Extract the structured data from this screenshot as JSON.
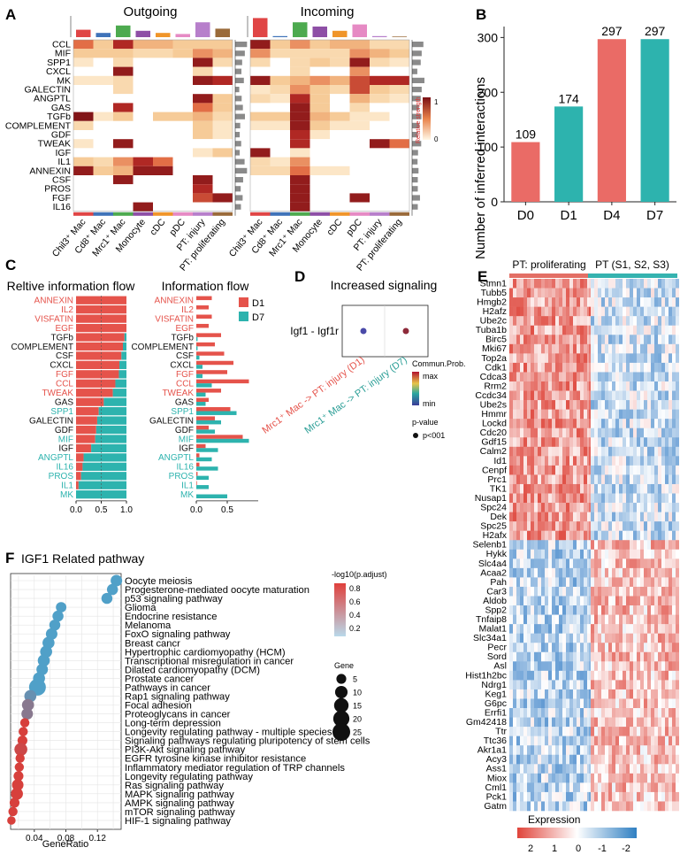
{
  "panels": {
    "A": {
      "letter": "A",
      "outgoing_title": "Outgoing",
      "incoming_title": "Incoming",
      "pathways": [
        "CCL",
        "MIF",
        "SPP1",
        "CXCL",
        "MK",
        "GALECTIN",
        "ANGPTL",
        "GAS",
        "TGFb",
        "COMPLEMENT",
        "GDF",
        "TWEAK",
        "IGF",
        "IL1",
        "ANNEXIN",
        "CSF",
        "PROS",
        "FGF",
        "IL16"
      ],
      "cell_types": [
        "Chil3⁺ Mac",
        "Cd8⁺ Mac",
        "Mrc1⁺ Mac",
        "Monocyte",
        "cDC",
        "pDC",
        "PT: injury",
        "PT: proliferating"
      ],
      "cell_colors": [
        "#e04545",
        "#3f73b9",
        "#4daa4f",
        "#8e4fa6",
        "#f0952a",
        "#e68ac4",
        "#b77fcb",
        "#9a6a3a"
      ],
      "legend_title": "Relative strength",
      "legend_max": "1",
      "legend_min": "0",
      "outgoing_top": [
        0.35,
        0.2,
        0.55,
        0.3,
        0.2,
        0.15,
        0.7,
        0.4
      ],
      "incoming_top": [
        0.9,
        0.05,
        0.7,
        0.5,
        0.3,
        0.6,
        0.05,
        0.03
      ],
      "outgoing_matrix": [
        [
          0.6,
          0.3,
          0.8,
          0.4,
          0.4,
          0.3,
          0.3,
          0.3
        ],
        [
          0.3,
          0.3,
          0.3,
          0.2,
          0.2,
          0.3,
          0.5,
          0.4
        ],
        [
          0.1,
          0,
          0.2,
          0,
          0,
          0,
          0.9,
          0.2
        ],
        [
          0,
          0,
          0.9,
          0,
          0,
          0,
          0.2,
          0
        ],
        [
          0.1,
          0.1,
          0.2,
          0,
          0,
          0,
          0.9,
          0.8
        ],
        [
          0,
          0,
          0.2,
          0,
          0,
          0,
          0,
          0
        ],
        [
          0,
          0,
          0,
          0,
          0,
          0,
          0.9,
          0.3
        ],
        [
          0,
          0,
          0.8,
          0,
          0,
          0,
          0.6,
          0.3
        ],
        [
          0.95,
          0.1,
          0.3,
          0,
          0.3,
          0.3,
          0.4,
          0.2
        ],
        [
          0.2,
          0,
          0,
          0,
          0,
          0,
          0.3,
          0.1
        ],
        [
          0,
          0,
          0,
          0,
          0,
          0,
          0.3,
          0.1
        ],
        [
          0.1,
          0,
          0.9,
          0,
          0,
          0,
          0,
          0
        ],
        [
          0,
          0,
          0,
          0,
          0,
          0,
          0.1,
          0.3
        ],
        [
          0.3,
          0.2,
          0.5,
          0.8,
          0.6,
          0,
          0,
          0
        ],
        [
          0.9,
          0.3,
          0.4,
          0.9,
          0.9,
          0,
          0,
          0
        ],
        [
          0,
          0,
          0.9,
          0,
          0,
          0,
          0.9,
          0
        ],
        [
          0,
          0,
          0,
          0,
          0,
          0,
          0.8,
          0
        ],
        [
          0,
          0,
          0,
          0,
          0,
          0,
          0.7,
          0.9
        ],
        [
          0,
          0,
          0,
          0.9,
          0,
          0,
          0,
          0
        ]
      ],
      "incoming_matrix": [
        [
          0.9,
          0.3,
          0.5,
          0.3,
          0.4,
          0.4,
          0.2,
          0.2
        ],
        [
          0.5,
          0.2,
          0.2,
          0.2,
          0.2,
          0.5,
          0.4,
          0.3
        ],
        [
          0.2,
          0,
          0.2,
          0.3,
          0.2,
          0.9,
          0.2,
          0.1
        ],
        [
          0,
          0,
          0.2,
          0,
          0,
          0.5,
          0,
          0
        ],
        [
          0.9,
          0.3,
          0.4,
          0.5,
          0.4,
          0.7,
          0.8,
          0.8
        ],
        [
          0.1,
          0.2,
          0.5,
          0.3,
          0.2,
          0.7,
          0.3,
          0.2
        ],
        [
          0.2,
          0.1,
          0.8,
          0.3,
          0,
          0.4,
          0.2,
          0.1
        ],
        [
          0,
          0,
          0.9,
          0.3,
          0,
          0.2,
          0,
          0
        ],
        [
          0.3,
          0.3,
          0.9,
          0.4,
          0.3,
          0.1,
          0.1,
          0
        ],
        [
          0.1,
          0.1,
          0.9,
          0.3,
          0.1,
          0.1,
          0,
          0
        ],
        [
          0,
          0,
          0.8,
          0.1,
          0,
          0,
          0,
          0
        ],
        [
          0,
          0,
          0.8,
          0,
          0,
          0,
          0.9,
          0.6
        ],
        [
          0.9,
          0,
          0.1,
          0,
          0,
          0,
          0,
          0
        ],
        [
          0.2,
          0.1,
          0.5,
          0,
          0,
          0,
          0,
          0
        ],
        [
          0.2,
          0.2,
          0.6,
          0.1,
          0.1,
          0,
          0,
          0
        ],
        [
          0,
          0,
          0.9,
          0,
          0,
          0,
          0,
          0
        ],
        [
          0,
          0,
          0.9,
          0,
          0,
          0,
          0,
          0
        ],
        [
          0,
          0,
          0.9,
          0,
          0,
          0.9,
          0,
          0
        ],
        [
          0,
          0,
          0.9,
          0,
          0,
          0,
          0,
          0
        ]
      ]
    },
    "B": {
      "letter": "B",
      "ylabel": "Number of inferred interactions"
    },
    "C": {
      "letter": "C",
      "left_title": "Reltive information flow",
      "right_title": "Information flow",
      "legend": [
        "D1",
        "D7"
      ],
      "colors": [
        "#e5534b",
        "#2db3ae"
      ],
      "pathways": [
        "ANNEXIN",
        "IL2",
        "VISFATIN",
        "EGF",
        "TGFb",
        "COMPLEMENT",
        "CSF",
        "CXCL",
        "FGF",
        "CCL",
        "TWEAK",
        "GAS",
        "SPP1",
        "GALECTIN",
        "GDF",
        "MIF",
        "IGF",
        "ANGPTL",
        "IL16",
        "PROS",
        "IL1",
        "MK"
      ],
      "label_colors": [
        "#e5534b",
        "#e5534b",
        "#e5534b",
        "#e5534b",
        "#111111",
        "#111111",
        "#111111",
        "#111111",
        "#e5534b",
        "#e5534b",
        "#e5534b",
        "#111111",
        "#2db3ae",
        "#111111",
        "#111111",
        "#2db3ae",
        "#111111",
        "#2db3ae",
        "#2db3ae",
        "#2db3ae",
        "#2db3ae",
        "#2db3ae"
      ],
      "relative_d1": [
        1,
        1,
        1,
        1,
        0.96,
        0.93,
        0.9,
        0.86,
        0.85,
        0.78,
        0.73,
        0.55,
        0.45,
        0.42,
        0.4,
        0.38,
        0.3,
        0.15,
        0.13,
        0.1,
        0.05,
        0
      ],
      "flow_d1": [
        0.25,
        0.2,
        0.25,
        0.2,
        0.4,
        0.3,
        0.45,
        0.6,
        0.5,
        0.85,
        0.4,
        0.2,
        0.55,
        0.3,
        0.2,
        0.75,
        0.15,
        0.05,
        0.05,
        0.02,
        0.01,
        0
      ],
      "flow_d7": [
        0,
        0,
        0,
        0,
        0.02,
        0.02,
        0.05,
        0.1,
        0.1,
        0.25,
        0.15,
        0.15,
        0.65,
        0.4,
        0.3,
        0.85,
        0.35,
        0.25,
        0.35,
        0.2,
        0.2,
        0.5
      ],
      "relative_ticks": [
        "0.0",
        "0.5",
        "1.0"
      ],
      "flow_ticks": [
        "0.0",
        "0.5"
      ]
    },
    "D": {
      "letter": "D",
      "title": "Increased signaling",
      "pair_label": "Igf1 - Igf1r",
      "x_labels": [
        "Mrc1⁺ Mac -> PT: injury (D1)",
        "Mrc1⁺ Mac -> PT: injury (D7)"
      ],
      "x_label_colors": [
        "#e5534b",
        "#2a9e96"
      ],
      "dot_colors": [
        "#4a4aa8",
        "#8e2a3a"
      ],
      "legend_prob_title": "Commun.Prob.",
      "legend_max": "max",
      "legend_min": "min",
      "legend_p_title": "p-value",
      "legend_p_value": "p<001"
    },
    "E": {
      "letter": "E",
      "group_labels": [
        "PT: proliferating",
        "PT (S1, S2, S3)"
      ],
      "group_colors": [
        "#e36f65",
        "#35b3b0"
      ],
      "genes": [
        "Stmn1",
        "Tubb5",
        "Hmgb2",
        "H2afz",
        "Ube2c",
        "Tuba1b",
        "Birc5",
        "Mki67",
        "Top2a",
        "Cdk1",
        "Cdca3",
        "Rrm2",
        "Ccdc34",
        "Ube2s",
        "Hmmr",
        "Lockd",
        "Cdc20",
        "Gdf15",
        "Calm2",
        "Id1",
        "Cenpf",
        "Prc1",
        "TK1",
        "Nusap1",
        "Spc24",
        "Dek",
        "Spc25",
        "H2afx",
        "Selenb1",
        "Hykk",
        "Slc4a4",
        "Acaa2",
        "Pah",
        "Car3",
        "Aldob",
        "Spp2",
        "Tnfaip8",
        "Malat1",
        "Slc34a1",
        "Pecr",
        "Sord",
        "Asl",
        "Hist1h2bc",
        "Ndrg1",
        "Keg1",
        "G6pc",
        "Errfi1",
        "Gm42418",
        "Ttr",
        "Ttc36",
        "Akr1a1",
        "Acy3",
        "Ass1",
        "Miox",
        "Cml1",
        "Pck1",
        "Gatm"
      ],
      "n_up_genes": 28,
      "expression_title": "Expression",
      "expression_ticks": [
        "2",
        "1",
        "0",
        "-1",
        "-2"
      ]
    },
    "F": {
      "letter": "F",
      "title": "IGF1 Related pathway",
      "xlabel": "GeneRatio",
      "x_ticks": [
        "0.04",
        "0.08",
        "0.12"
      ],
      "color_legend_title": "-log10(p.adjust)",
      "color_legend_ticks": [
        "0.8",
        "0.6",
        "0.4",
        "0.2"
      ],
      "size_legend_title": "Gene",
      "size_legend_values": [
        "5",
        "10",
        "15",
        "20",
        "25"
      ]
    }
  },
  "chart_data": [
    {
      "type": "bar",
      "title": "",
      "xlabel": "",
      "ylabel": "Number of inferred interactions",
      "categories": [
        "D0",
        "D1",
        "D4",
        "D7"
      ],
      "values": [
        109,
        174,
        297,
        297
      ],
      "bar_colors": [
        "#ea6b66",
        "#2db3ae",
        "#ea6b66",
        "#2db3ae"
      ],
      "ylim": [
        0,
        320
      ],
      "yticks": [
        0,
        100,
        200,
        300
      ]
    },
    {
      "type": "scatter",
      "title": "IGF1 Related pathway",
      "xlabel": "GeneRatio",
      "xlim": [
        0.01,
        0.15
      ],
      "terms": [
        "Oocyte meiosis",
        "Progesterone-mediated oocyte maturation",
        "p53 signaling pathway",
        "Glioma",
        "Endocrine resistance",
        "Melanoma",
        "FoxO signaling pathway",
        "Breast cancr",
        "Hypertrophic cardiomyopathy (HCM)",
        "Transcriptional misregulation in cancer",
        "Dilated cardiomyopathy (DCM)",
        "Prostate cancer",
        "Pathways in cancer",
        "Rap1 signaling pathway",
        "Focal adhesion",
        "Proteoglycans in cancer",
        "Long-term depression",
        "Longevity regulating pathway - multiple species",
        "Signaling pathways regulating pluripotency of stem cells",
        "PI3K-Akt signaling pathway",
        "EGFR tyrosine kinase inhibitor resistance",
        "Inflammatory mediator regulation of TRP channels",
        "Longevity regulating pathway",
        "Ras signaling pathway",
        "MAPK signaling pathway",
        "AMPK signaling pathway",
        "mTOR signaling pathway",
        "HIF-1 signaling pathway"
      ],
      "gene_ratio": [
        0.144,
        0.139,
        0.132,
        0.074,
        0.07,
        0.066,
        0.062,
        0.058,
        0.055,
        0.052,
        0.05,
        0.046,
        0.044,
        0.035,
        0.032,
        0.031,
        0.028,
        0.026,
        0.025,
        0.023,
        0.022,
        0.021,
        0.02,
        0.019,
        0.018,
        0.015,
        0.013,
        0.011
      ],
      "gene_count": [
        8,
        7,
        7,
        6,
        7,
        7,
        8,
        9,
        9,
        9,
        8,
        9,
        22,
        9,
        9,
        8,
        4,
        4,
        5,
        11,
        4,
        4,
        5,
        8,
        9,
        5,
        4,
        3
      ],
      "neg_log10_padj": [
        0.2,
        0.2,
        0.2,
        0.2,
        0.2,
        0.2,
        0.2,
        0.2,
        0.2,
        0.2,
        0.2,
        0.2,
        0.2,
        0.3,
        0.45,
        0.45,
        0.8,
        0.8,
        0.8,
        0.75,
        0.8,
        0.8,
        0.8,
        0.8,
        0.8,
        0.8,
        0.8,
        0.8
      ]
    }
  ]
}
